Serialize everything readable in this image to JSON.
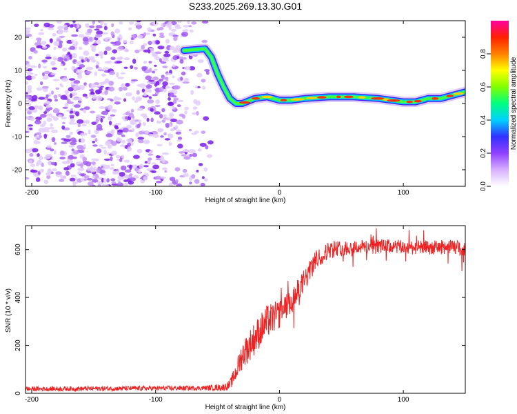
{
  "chart_data": [
    {
      "type": "heatmap",
      "title": "S233.2025.269.13.30.G01",
      "xlabel": "Height of straight line (km)",
      "ylabel": "Frequency (Hz)",
      "xlim": [
        -205,
        150
      ],
      "ylim": [
        -25,
        25
      ],
      "xticks": [
        -200,
        -100,
        0,
        100
      ],
      "xtick_labels": [
        "-200",
        "-100",
        "0",
        "100"
      ],
      "yticks": [
        -20,
        -10,
        0,
        10,
        20
      ],
      "ytick_labels": [
        "-20",
        "-10",
        "0",
        "10",
        "20"
      ],
      "noise_region_x": [
        -205,
        -55
      ],
      "ridge": {
        "x": [
          -77,
          -60,
          -55,
          -50,
          -45,
          -40,
          -35,
          -30,
          -20,
          -10,
          0,
          10,
          20,
          40,
          60,
          80,
          100,
          110,
          120,
          130,
          140,
          150
        ],
        "frequency": [
          16,
          16.5,
          14,
          9,
          5,
          1.5,
          0,
          0,
          1.5,
          2,
          1,
          1,
          1.5,
          2,
          2,
          1.5,
          0.5,
          0.5,
          1.5,
          1.5,
          2.5,
          3.5
        ]
      },
      "colorbar": {
        "label": "Normalized spectral amplitude",
        "range": [
          0,
          1
        ],
        "ticks": [
          0,
          0.2,
          0.4,
          0.6,
          0.8
        ],
        "tick_labels": [
          "0.0",
          "0.2",
          "0.4",
          "0.6",
          "0.8"
        ],
        "colors": [
          "#ffffff",
          "#d8b0ff",
          "#9040ff",
          "#3030ff",
          "#00d0ff",
          "#00ff80",
          "#80ff00",
          "#ffff00",
          "#ff8000",
          "#ff2000",
          "#ff00a0"
        ]
      }
    },
    {
      "type": "line",
      "xlabel": "Height of straight line (km)",
      "ylabel": "SNR (10 * v/v)",
      "xlim": [
        -205,
        150
      ],
      "ylim": [
        0,
        700
      ],
      "xticks": [
        -200,
        -100,
        0,
        100
      ],
      "xtick_labels": [
        "-200",
        "-100",
        "0",
        "100"
      ],
      "yticks": [
        0,
        200,
        400,
        600
      ],
      "ytick_labels": [
        "0",
        "200",
        "400",
        "600"
      ],
      "series": [
        {
          "name": "SNR",
          "color": "#ee2222",
          "x": [
            -205,
            -60,
            -45,
            -40,
            -35,
            -30,
            -20,
            -10,
            0,
            10,
            20,
            30,
            40,
            60,
            80,
            100,
            120,
            140,
            150
          ],
          "y": [
            18,
            22,
            25,
            35,
            90,
            160,
            230,
            300,
            330,
            380,
            470,
            560,
            600,
            610,
            615,
            610,
            608,
            612,
            600
          ],
          "noise_amplitude": [
            10,
            10,
            15,
            20,
            40,
            60,
            70,
            70,
            60,
            55,
            50,
            40,
            35,
            30,
            30,
            30,
            30,
            30,
            30
          ]
        }
      ]
    }
  ]
}
